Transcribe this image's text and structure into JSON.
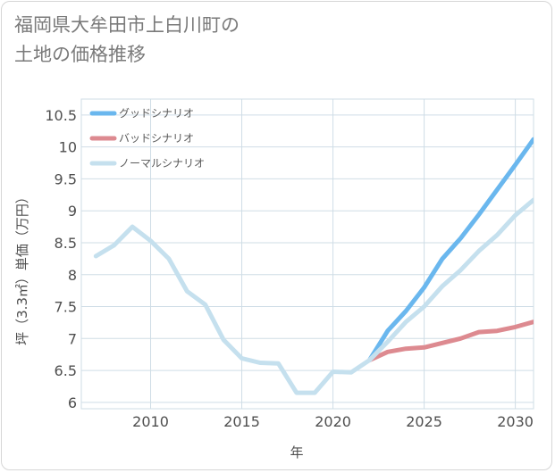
{
  "title": "福岡県大牟田市上白川町の\n土地の価格推移",
  "chart_data": {
    "type": "line",
    "xlabel": "年",
    "ylabel": "坪（3.3㎡）単価（万円）",
    "xlim": [
      2006.2,
      2031
    ],
    "ylim": [
      5.9,
      10.75
    ],
    "xticks": [
      2010,
      2015,
      2020,
      2025,
      2030
    ],
    "yticks": [
      6,
      6.5,
      7,
      7.5,
      8,
      8.5,
      9,
      9.5,
      10,
      10.5
    ],
    "ytick_labels": [
      "6",
      "6.5",
      "7",
      "7.5",
      "8",
      "8.5",
      "9",
      "9.5",
      "10",
      "10.5"
    ],
    "grid": true,
    "legend_position": "top-left",
    "series": [
      {
        "name": "グッドシナリオ",
        "color": "#6ab7ee",
        "x": [
          2022,
          2023,
          2024,
          2025,
          2026,
          2027,
          2028,
          2029,
          2030,
          2031
        ],
        "y": [
          6.66,
          7.12,
          7.43,
          7.8,
          8.25,
          8.57,
          8.94,
          9.33,
          9.72,
          10.12
        ]
      },
      {
        "name": "バッドシナリオ",
        "color": "#dd8a90",
        "x": [
          2022,
          2023,
          2024,
          2025,
          2026,
          2027,
          2028,
          2029,
          2030,
          2031
        ],
        "y": [
          6.66,
          6.79,
          6.84,
          6.86,
          6.93,
          7.0,
          7.1,
          7.12,
          7.18,
          7.26
        ]
      },
      {
        "name": "ノーマルシナリオ",
        "color": "#c5e0ee",
        "x": [
          2007,
          2008,
          2009,
          2010,
          2011,
          2012,
          2013,
          2014,
          2015,
          2016,
          2017,
          2018,
          2019,
          2020,
          2021,
          2022,
          2023,
          2024,
          2025,
          2026,
          2027,
          2028,
          2029,
          2030,
          2031
        ],
        "y": [
          8.29,
          8.46,
          8.75,
          8.53,
          8.25,
          7.74,
          7.53,
          6.98,
          6.69,
          6.62,
          6.61,
          6.15,
          6.15,
          6.48,
          6.47,
          6.66,
          6.95,
          7.26,
          7.5,
          7.82,
          8.07,
          8.37,
          8.62,
          8.93,
          9.17
        ]
      }
    ]
  }
}
